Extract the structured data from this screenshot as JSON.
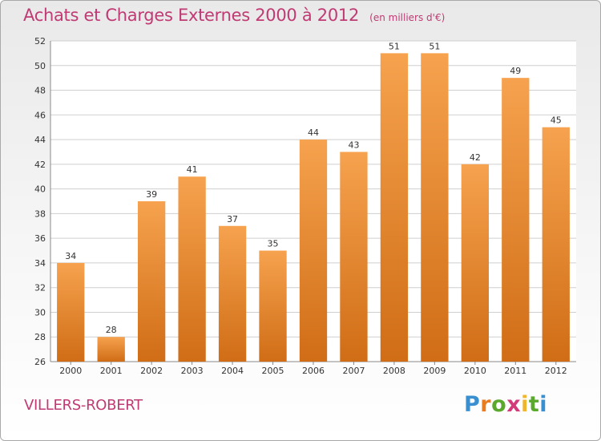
{
  "header": {
    "title": "Achats et Charges Externes 2000 à 2012",
    "subtitle": "(en milliers d'€)"
  },
  "footer": {
    "location": "VILLERS-ROBERT",
    "logo_text": "Proxiti"
  },
  "colors": {
    "title": "#c03a73",
    "bar_light": "#f6a24e",
    "bar_dark": "#d06d16",
    "grid": "#cfcfcf",
    "axis_text": "#333333"
  },
  "chart_data": {
    "type": "bar",
    "title": "Achats et Charges Externes 2000 à 2012",
    "subtitle": "(en milliers d'€)",
    "categories": [
      "2000",
      "2001",
      "2002",
      "2003",
      "2004",
      "2005",
      "2006",
      "2007",
      "2008",
      "2009",
      "2010",
      "2011",
      "2012"
    ],
    "values": [
      34,
      28,
      39,
      41,
      37,
      35,
      44,
      43,
      51,
      51,
      42,
      49,
      45
    ],
    "ylim": [
      26,
      52
    ],
    "yticks": [
      26,
      28,
      30,
      32,
      34,
      36,
      38,
      40,
      42,
      44,
      46,
      48,
      50,
      52
    ],
    "grid": true,
    "data_labels": true
  }
}
